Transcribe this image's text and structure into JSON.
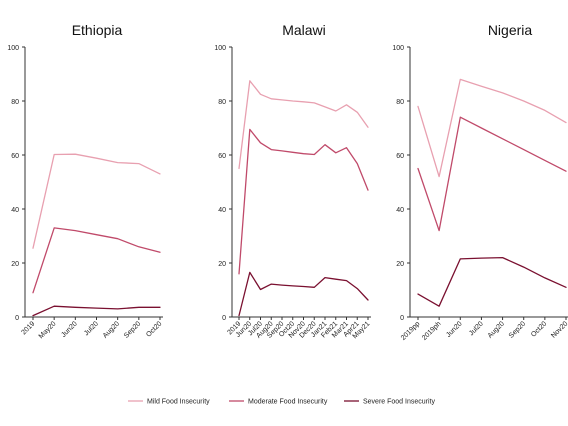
{
  "colors": {
    "mild": "#e8a0b0",
    "moderate": "#c04a6a",
    "severe": "#7a1030",
    "axis": "#333333"
  },
  "legend": {
    "placement": "bottom",
    "items": [
      {
        "key": "mild",
        "label": "Mild Food Insecurity"
      },
      {
        "key": "moderate",
        "label": "Moderate Food Insecurity"
      },
      {
        "key": "severe",
        "label": "Severe Food Insecurity"
      }
    ]
  },
  "chart_data": [
    {
      "type": "line",
      "title": "Ethiopia",
      "ylim": [
        0,
        100
      ],
      "yticks": [
        0,
        20,
        40,
        60,
        80,
        100
      ],
      "categories": [
        "2019",
        "May20",
        "Jun20",
        "Jul20",
        "Aug20",
        "Sep20",
        "Oct20"
      ],
      "series": [
        {
          "name": "Mild Food Insecurity",
          "key": "mild",
          "values": [
            25.5,
            60.2,
            60.3,
            58.8,
            57.2,
            56.8,
            53.0
          ]
        },
        {
          "name": "Moderate Food Insecurity",
          "key": "moderate",
          "values": [
            9.0,
            33.0,
            32.0,
            30.5,
            29.0,
            26.0,
            24.0
          ]
        },
        {
          "name": "Severe Food Insecurity",
          "key": "severe",
          "values": [
            0.5,
            4.0,
            3.6,
            3.3,
            3.0,
            3.6,
            3.6
          ]
        }
      ]
    },
    {
      "type": "line",
      "title": "Malawi",
      "ylim": [
        0,
        100
      ],
      "yticks": [
        0,
        20,
        40,
        60,
        80,
        100
      ],
      "categories": [
        "2019",
        "Jun20",
        "Jul20",
        "Aug20",
        "Sep20",
        "Oct20",
        "Nov20",
        "Dec20",
        "Jan21",
        "Feb21",
        "Mar21",
        "Apr21",
        "May21"
      ],
      "series": [
        {
          "name": "Mild Food Insecurity",
          "key": "mild",
          "values": [
            55.0,
            87.5,
            82.5,
            80.8,
            80.4,
            80.0,
            79.7,
            79.3,
            77.8,
            76.3,
            78.6,
            75.8,
            70.3
          ]
        },
        {
          "name": "Moderate Food Insecurity",
          "key": "moderate",
          "values": [
            16.0,
            69.5,
            64.5,
            62.0,
            61.5,
            61.0,
            60.5,
            60.2,
            63.8,
            60.8,
            62.7,
            56.8,
            47.0
          ]
        },
        {
          "name": "Severe Food Insecurity",
          "key": "severe",
          "values": [
            0.5,
            16.5,
            10.2,
            12.2,
            11.8,
            11.5,
            11.3,
            11.0,
            14.6,
            14.0,
            13.5,
            10.5,
            6.3
          ]
        }
      ]
    },
    {
      "type": "line",
      "title": "Nigeria",
      "ylim": [
        0,
        100
      ],
      "yticks": [
        0,
        20,
        40,
        60,
        80,
        100
      ],
      "categories": [
        "2019pp",
        "2019ph",
        "Jun20",
        "Jul20",
        "Aug20",
        "Sep20",
        "Oct20",
        "Nov20"
      ],
      "series": [
        {
          "name": "Mild Food Insecurity",
          "key": "mild",
          "values": [
            78.0,
            52.0,
            88.0,
            85.5,
            83.0,
            80.0,
            76.5,
            72.0
          ]
        },
        {
          "name": "Moderate Food Insecurity",
          "key": "moderate",
          "values": [
            55.0,
            32.0,
            74.0,
            70.0,
            66.0,
            62.0,
            58.0,
            54.0
          ]
        },
        {
          "name": "Severe Food Insecurity",
          "key": "severe",
          "values": [
            8.5,
            4.0,
            21.5,
            21.8,
            22.0,
            18.5,
            14.5,
            11.0
          ]
        }
      ]
    }
  ]
}
